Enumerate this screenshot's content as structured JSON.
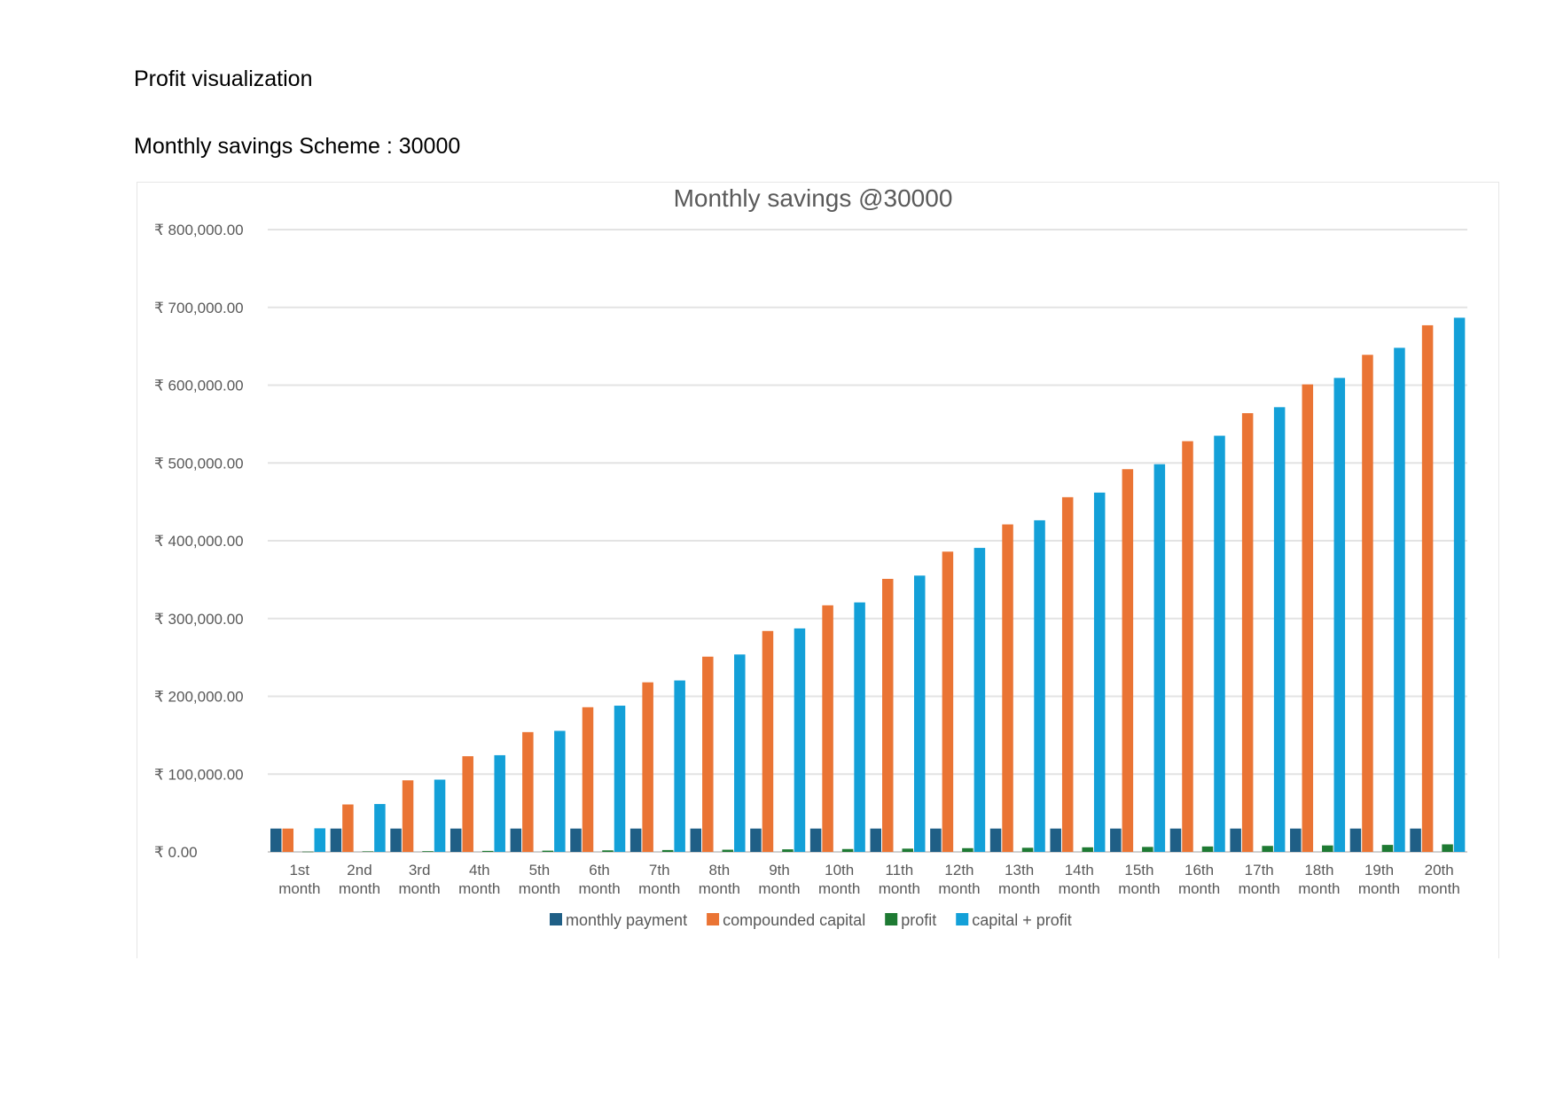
{
  "document": {
    "heading": "Profit visualization",
    "subheading": "Monthly savings Scheme : 30000"
  },
  "chart_data": {
    "type": "bar",
    "title": "Monthly savings @30000",
    "xlabel": "",
    "ylabel": "",
    "ylim": [
      0,
      800000
    ],
    "yticks": [
      0,
      100000,
      200000,
      300000,
      400000,
      500000,
      600000,
      700000,
      800000
    ],
    "ytick_labels": [
      "₹ 0.00",
      "₹ 100,000.00",
      "₹ 200,000.00",
      "₹ 300,000.00",
      "₹ 400,000.00",
      "₹ 500,000.00",
      "₹ 600,000.00",
      "₹ 700,000.00",
      "₹ 800,000.00"
    ],
    "grid": true,
    "legend_position": "bottom",
    "categories": [
      [
        "1st",
        "month"
      ],
      [
        "2nd",
        "month"
      ],
      [
        "3rd",
        "month"
      ],
      [
        "4th",
        "month"
      ],
      [
        "5th",
        "month"
      ],
      [
        "6th",
        "month"
      ],
      [
        "7th",
        "month"
      ],
      [
        "8th",
        "month"
      ],
      [
        "9th",
        "month"
      ],
      [
        "10th",
        "month"
      ],
      [
        "11th",
        "month"
      ],
      [
        "12th",
        "month"
      ],
      [
        "13th",
        "month"
      ],
      [
        "14th",
        "month"
      ],
      [
        "15th",
        "month"
      ],
      [
        "16th",
        "month"
      ],
      [
        "17th",
        "month"
      ],
      [
        "18th",
        "month"
      ],
      [
        "19th",
        "month"
      ],
      [
        "20th",
        "month"
      ]
    ],
    "series": [
      {
        "name": "monthly payment",
        "color": "#1f5f86",
        "values": [
          30000,
          30000,
          30000,
          30000,
          30000,
          30000,
          30000,
          30000,
          30000,
          30000,
          30000,
          30000,
          30000,
          30000,
          30000,
          30000,
          30000,
          30000,
          30000,
          30000
        ]
      },
      {
        "name": "compounded capital",
        "color": "#ea7434",
        "values": [
          30000,
          61000,
          92000,
          123000,
          154000,
          186000,
          218000,
          251000,
          284000,
          317000,
          351000,
          386000,
          421000,
          456000,
          492000,
          528000,
          564000,
          601000,
          639000,
          677000
        ]
      },
      {
        "name": "profit",
        "color": "#1e7a33",
        "values": [
          300,
          600,
          900,
          1300,
          1600,
          2000,
          2400,
          2800,
          3300,
          3700,
          4200,
          4800,
          5300,
          5900,
          6400,
          7000,
          7700,
          8300,
          9000,
          9700
        ]
      },
      {
        "name": "capital + profit",
        "color": "#13a0d8",
        "values": [
          30300,
          61600,
          92900,
          124300,
          155600,
          188000,
          220400,
          253800,
          287300,
          320700,
          355200,
          390800,
          426300,
          461900,
          498400,
          535000,
          571700,
          609300,
          648000,
          686700
        ]
      }
    ]
  }
}
